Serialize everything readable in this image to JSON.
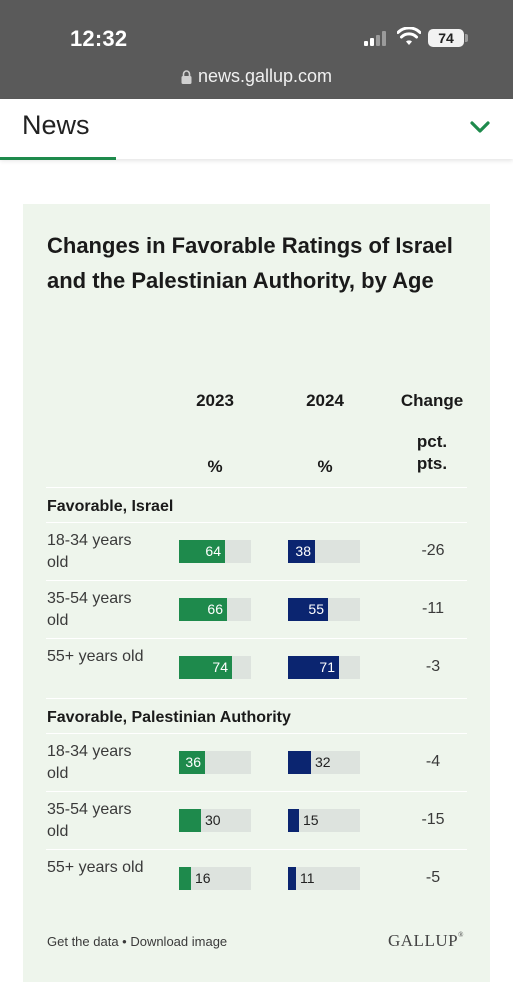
{
  "status_bar": {
    "time": "12:32",
    "battery": "74"
  },
  "browser": {
    "url": "news.gallup.com"
  },
  "header": {
    "section_title": "News"
  },
  "chart": {
    "title": "Changes in Favorable Ratings of Israel and the Palestinian Authority, by Age",
    "columns": {
      "col_2023": "2023",
      "col_2024": "2024",
      "change": "Change",
      "unit_2023": "%",
      "unit_2024": "%",
      "change_unit": "pct. pts."
    },
    "footer_link": "Get the data • Download image",
    "brand": "GALLUP"
  },
  "colors": {
    "green": "#1e8a4c",
    "navy": "#0b2570",
    "card_bg": "#eef5ec",
    "track": "#dde3de"
  },
  "chart_data": {
    "type": "table",
    "title": "Changes in Favorable Ratings of Israel and the Palestinian Authority, by Age",
    "columns": [
      "2023",
      "2024",
      "Change"
    ],
    "units": [
      "%",
      "%",
      "pct. pts."
    ],
    "sections": [
      {
        "label": "Favorable, Israel",
        "rows": [
          {
            "label": "18-34 years old",
            "v2023": 64,
            "v2024": 38,
            "change": "-26"
          },
          {
            "label": "35-54 years old",
            "v2023": 66,
            "v2024": 55,
            "change": "-11"
          },
          {
            "label": "55+ years old",
            "v2023": 74,
            "v2024": 71,
            "change": "-3"
          }
        ]
      },
      {
        "label": "Favorable, Palestinian Authority",
        "rows": [
          {
            "label": "18-34 years old",
            "v2023": 36,
            "v2024": 32,
            "change": "-4"
          },
          {
            "label": "35-54 years old",
            "v2023": 30,
            "v2024": 15,
            "change": "-15"
          },
          {
            "label": "55+ years old",
            "v2023": 16,
            "v2024": 11,
            "change": "-5"
          }
        ]
      }
    ]
  }
}
